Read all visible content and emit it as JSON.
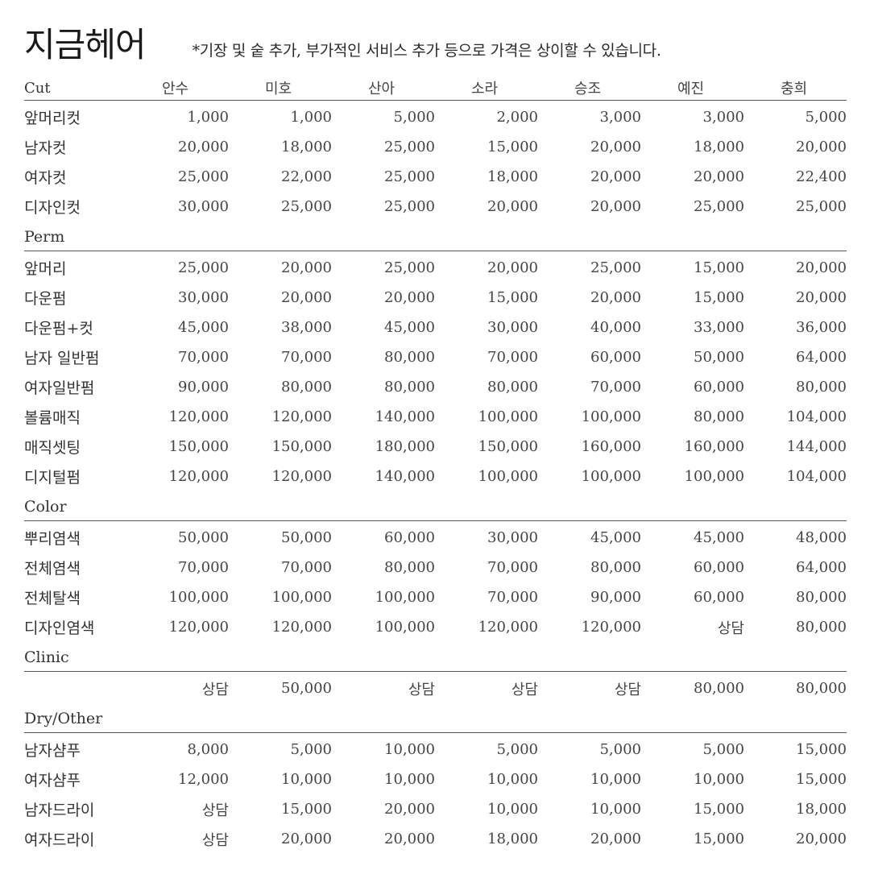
{
  "header": {
    "title": "지금헤어",
    "note": "*기장 및 숱 추가, 부가적인 서비스 추가 등으로 가격은 상이할 수 있습니다."
  },
  "table": {
    "first_column_header": "Cut",
    "stylists": [
      "안수",
      "미호",
      "산아",
      "소라",
      "승조",
      "예진",
      "충희"
    ],
    "sections": [
      {
        "title": null,
        "rows": [
          {
            "label": "앞머리컷",
            "values": [
              "1,000",
              "1,000",
              "5,000",
              "2,000",
              "3,000",
              "3,000",
              "5,000"
            ]
          },
          {
            "label": "남자컷",
            "values": [
              "20,000",
              "18,000",
              "25,000",
              "15,000",
              "20,000",
              "18,000",
              "20,000"
            ]
          },
          {
            "label": "여자컷",
            "values": [
              "25,000",
              "22,000",
              "25,000",
              "18,000",
              "20,000",
              "20,000",
              "22,400"
            ]
          },
          {
            "label": "디자인컷",
            "values": [
              "30,000",
              "25,000",
              "25,000",
              "20,000",
              "20,000",
              "25,000",
              "25,000"
            ]
          }
        ]
      },
      {
        "title": "Perm",
        "rows": [
          {
            "label": "앞머리",
            "values": [
              "25,000",
              "20,000",
              "25,000",
              "20,000",
              "25,000",
              "15,000",
              "20,000"
            ]
          },
          {
            "label": "다운펌",
            "values": [
              "30,000",
              "20,000",
              "20,000",
              "15,000",
              "20,000",
              "15,000",
              "20,000"
            ]
          },
          {
            "label": "다운펌+컷",
            "values": [
              "45,000",
              "38,000",
              "45,000",
              "30,000",
              "40,000",
              "33,000",
              "36,000"
            ]
          },
          {
            "label": "남자 일반펌",
            "values": [
              "70,000",
              "70,000",
              "80,000",
              "70,000",
              "60,000",
              "50,000",
              "64,000"
            ]
          },
          {
            "label": "여자일반펌",
            "values": [
              "90,000",
              "80,000",
              "80,000",
              "80,000",
              "70,000",
              "60,000",
              "80,000"
            ]
          },
          {
            "label": "볼륨매직",
            "values": [
              "120,000",
              "120,000",
              "140,000",
              "100,000",
              "100,000",
              "80,000",
              "104,000"
            ]
          },
          {
            "label": "매직셋팅",
            "values": [
              "150,000",
              "150,000",
              "180,000",
              "150,000",
              "160,000",
              "160,000",
              "144,000"
            ]
          },
          {
            "label": "디지털펌",
            "values": [
              "120,000",
              "120,000",
              "140,000",
              "100,000",
              "100,000",
              "100,000",
              "104,000"
            ]
          }
        ]
      },
      {
        "title": "Color",
        "rows": [
          {
            "label": "뿌리염색",
            "values": [
              "50,000",
              "50,000",
              "60,000",
              "30,000",
              "45,000",
              "45,000",
              "48,000"
            ]
          },
          {
            "label": "전체염색",
            "values": [
              "70,000",
              "70,000",
              "80,000",
              "70,000",
              "80,000",
              "60,000",
              "64,000"
            ]
          },
          {
            "label": "전체탈색",
            "values": [
              "100,000",
              "100,000",
              "100,000",
              "70,000",
              "90,000",
              "60,000",
              "80,000"
            ]
          },
          {
            "label": "디자인염색",
            "values": [
              "120,000",
              "120,000",
              "100,000",
              "120,000",
              "120,000",
              "상담",
              "80,000"
            ]
          }
        ]
      },
      {
        "title": "Clinic",
        "rows": [
          {
            "label": "",
            "values": [
              "상담",
              "50,000",
              "상담",
              "상담",
              "상담",
              "80,000",
              "80,000"
            ]
          }
        ]
      },
      {
        "title": "Dry/Other",
        "rows": [
          {
            "label": "남자샴푸",
            "values": [
              "8,000",
              "5,000",
              "10,000",
              "5,000",
              "5,000",
              "5,000",
              "15,000"
            ]
          },
          {
            "label": "여자샴푸",
            "values": [
              "12,000",
              "10,000",
              "10,000",
              "10,000",
              "10,000",
              "10,000",
              "15,000"
            ]
          },
          {
            "label": "남자드라이",
            "values": [
              "상담",
              "15,000",
              "20,000",
              "10,000",
              "10,000",
              "15,000",
              "18,000"
            ]
          },
          {
            "label": "여자드라이",
            "values": [
              "상담",
              "20,000",
              "20,000",
              "18,000",
              "20,000",
              "15,000",
              "20,000"
            ]
          }
        ]
      }
    ]
  }
}
